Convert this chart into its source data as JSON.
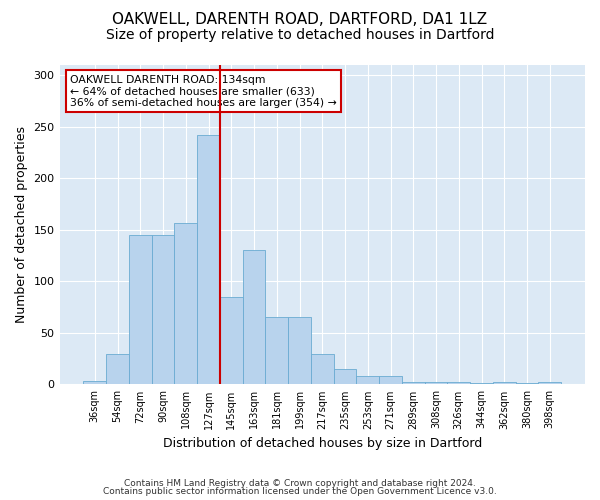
{
  "title1": "OAKWELL, DARENTH ROAD, DARTFORD, DA1 1LZ",
  "title2": "Size of property relative to detached houses in Dartford",
  "xlabel": "Distribution of detached houses by size in Dartford",
  "ylabel": "Number of detached properties",
  "categories": [
    "36sqm",
    "54sqm",
    "72sqm",
    "90sqm",
    "108sqm",
    "127sqm",
    "145sqm",
    "163sqm",
    "181sqm",
    "199sqm",
    "217sqm",
    "235sqm",
    "253sqm",
    "271sqm",
    "289sqm",
    "308sqm",
    "326sqm",
    "344sqm",
    "362sqm",
    "380sqm",
    "398sqm"
  ],
  "values": [
    3,
    30,
    145,
    145,
    157,
    242,
    85,
    130,
    65,
    65,
    30,
    15,
    8,
    8,
    2,
    2,
    2,
    1,
    2,
    1,
    2
  ],
  "bar_color": "#b8d3ed",
  "bar_edge_color": "#6aabd2",
  "vline_x_index": 5,
  "vline_color": "#cc0000",
  "annotation_text": "OAKWELL DARENTH ROAD: 134sqm\n← 64% of detached houses are smaller (633)\n36% of semi-detached houses are larger (354) →",
  "annotation_box_color": "#ffffff",
  "annotation_box_edge": "#cc0000",
  "ylim": [
    0,
    310
  ],
  "yticks": [
    0,
    50,
    100,
    150,
    200,
    250,
    300
  ],
  "bg_color": "#dce9f5",
  "footer1": "Contains HM Land Registry data © Crown copyright and database right 2024.",
  "footer2": "Contains public sector information licensed under the Open Government Licence v3.0.",
  "title1_fontsize": 11,
  "title2_fontsize": 10,
  "xlabel_fontsize": 9,
  "ylabel_fontsize": 9
}
